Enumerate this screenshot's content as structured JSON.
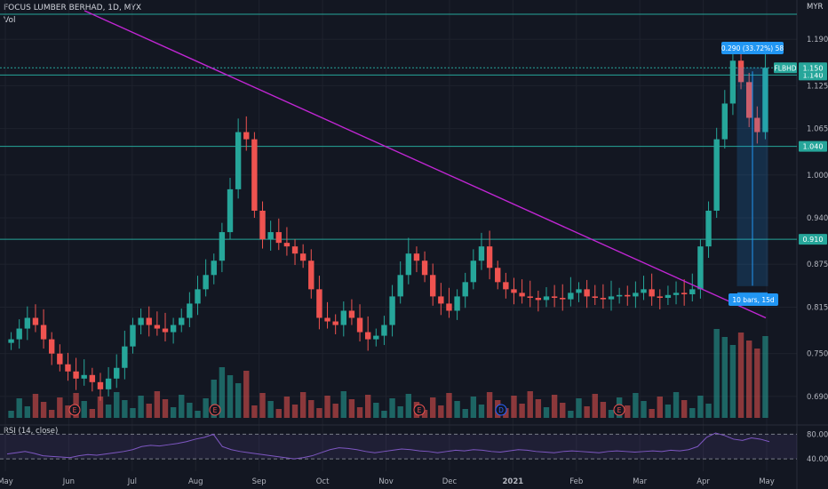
{
  "header": {
    "symbol_line": "FOCUS LUMBER BERHAD, 1D, MYX",
    "volume_label": "Vol",
    "rsi_label": "RSI (14, close)"
  },
  "price_axis": {
    "currency": "MYR",
    "ticks": [
      "1.190",
      "1.125",
      "1.065",
      "1.000",
      "0.940",
      "0.875",
      "0.815",
      "0.750",
      "0.690"
    ],
    "rsi_ticks": [
      "80.00",
      "40.00"
    ]
  },
  "badges": {
    "ticker": "FLBHD",
    "last_price": "1.150",
    "level_1140": "1.140",
    "level_1040": "1.040",
    "level_0910": "0.910"
  },
  "measure": {
    "top_label": "0.290 (33.72%) 58",
    "bottom_label": "10 bars, 15d"
  },
  "events": [
    {
      "text": "E",
      "key": "jun-earnings"
    },
    {
      "text": "E",
      "key": "aug-earnings"
    },
    {
      "text": "E",
      "key": "nov-earnings"
    },
    {
      "text": "D",
      "key": "dec-dividend"
    },
    {
      "text": "E",
      "key": "feb-earnings"
    }
  ],
  "colors": {
    "up": "#26a69a",
    "down": "#ef5350",
    "trendline": "#c026d3",
    "hline": "#26a69a",
    "measure": "#2196f3",
    "rsi": "#7e57c2"
  },
  "chart_data": {
    "type": "candlestick",
    "x_labels": [
      "May",
      "Jun",
      "Jul",
      "Aug",
      "Sep",
      "Oct",
      "Nov",
      "Dec",
      "2021",
      "Feb",
      "Mar",
      "Apr",
      "May"
    ],
    "ylim": [
      0.66,
      1.23
    ],
    "horizontal_levels": [
      1.14,
      1.04,
      0.91
    ],
    "trendline": {
      "from_price": 1.23,
      "to_price": 0.8
    },
    "series_close": [
      0.77,
      0.785,
      0.8,
      0.79,
      0.77,
      0.75,
      0.735,
      0.725,
      0.715,
      0.72,
      0.71,
      0.7,
      0.715,
      0.73,
      0.76,
      0.79,
      0.8,
      0.79,
      0.785,
      0.78,
      0.79,
      0.8,
      0.82,
      0.84,
      0.86,
      0.88,
      0.92,
      0.98,
      1.06,
      1.05,
      0.95,
      0.91,
      0.92,
      0.905,
      0.9,
      0.89,
      0.88,
      0.84,
      0.8,
      0.795,
      0.79,
      0.81,
      0.8,
      0.78,
      0.77,
      0.775,
      0.79,
      0.83,
      0.86,
      0.89,
      0.88,
      0.86,
      0.83,
      0.82,
      0.81,
      0.83,
      0.85,
      0.88,
      0.9,
      0.87,
      0.85,
      0.84,
      0.835,
      0.83,
      0.828,
      0.825,
      0.83,
      0.828,
      0.826,
      0.835,
      0.84,
      0.83,
      0.828,
      0.826,
      0.83,
      0.832,
      0.83,
      0.835,
      0.84,
      0.83,
      0.828,
      0.832,
      0.835,
      0.833,
      0.84,
      0.9,
      0.95,
      1.05,
      1.1,
      1.16,
      1.13,
      1.08,
      1.06,
      1.15
    ],
    "rsi_values": [
      48,
      50,
      52,
      49,
      45,
      44,
      43,
      42,
      45,
      47,
      46,
      48,
      50,
      52,
      55,
      60,
      62,
      61,
      63,
      65,
      68,
      72,
      75,
      80,
      60,
      55,
      52,
      50,
      48,
      46,
      44,
      42,
      40,
      42,
      45,
      50,
      55,
      58,
      57,
      55,
      52,
      50,
      52,
      54,
      56,
      55,
      53,
      52,
      50,
      52,
      54,
      53,
      55,
      54,
      52,
      51,
      53,
      55,
      54,
      52,
      51,
      50,
      52,
      53,
      52,
      51,
      50,
      52,
      53,
      52,
      51,
      52,
      53,
      52,
      54,
      53,
      55,
      60,
      75,
      82,
      78,
      72,
      70,
      74,
      72,
      68
    ]
  }
}
